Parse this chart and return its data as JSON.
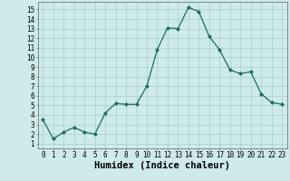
{
  "x": [
    0,
    1,
    2,
    3,
    4,
    5,
    6,
    7,
    8,
    9,
    10,
    11,
    12,
    13,
    14,
    15,
    16,
    17,
    18,
    19,
    20,
    21,
    22,
    23
  ],
  "y": [
    3.5,
    1.5,
    2.2,
    2.7,
    2.2,
    2.0,
    4.2,
    5.2,
    5.1,
    5.1,
    7.0,
    10.8,
    13.1,
    13.0,
    15.2,
    14.8,
    12.2,
    10.8,
    8.7,
    8.3,
    8.5,
    6.2,
    5.3,
    5.1
  ],
  "line_color": "#1a6e60",
  "marker": "D",
  "markersize": 2.0,
  "linewidth": 0.9,
  "bg_color": "#ceeaea",
  "grid_color": "#a8cccc",
  "xlabel": "Humidex (Indice chaleur)",
  "xlabel_fontsize": 7.5,
  "ytick_labels": [
    "1",
    "2",
    "3",
    "4",
    "5",
    "6",
    "7",
    "8",
    "9",
    "10",
    "11",
    "12",
    "13",
    "14",
    "15"
  ],
  "ytick_vals": [
    1,
    2,
    3,
    4,
    5,
    6,
    7,
    8,
    9,
    10,
    11,
    12,
    13,
    14,
    15
  ],
  "xtick_vals": [
    0,
    1,
    2,
    3,
    4,
    5,
    6,
    7,
    8,
    9,
    10,
    11,
    12,
    13,
    14,
    15,
    16,
    17,
    18,
    19,
    20,
    21,
    22,
    23
  ],
  "ylim": [
    0.5,
    15.8
  ],
  "xlim": [
    -0.5,
    23.5
  ],
  "tick_fontsize": 5.5
}
